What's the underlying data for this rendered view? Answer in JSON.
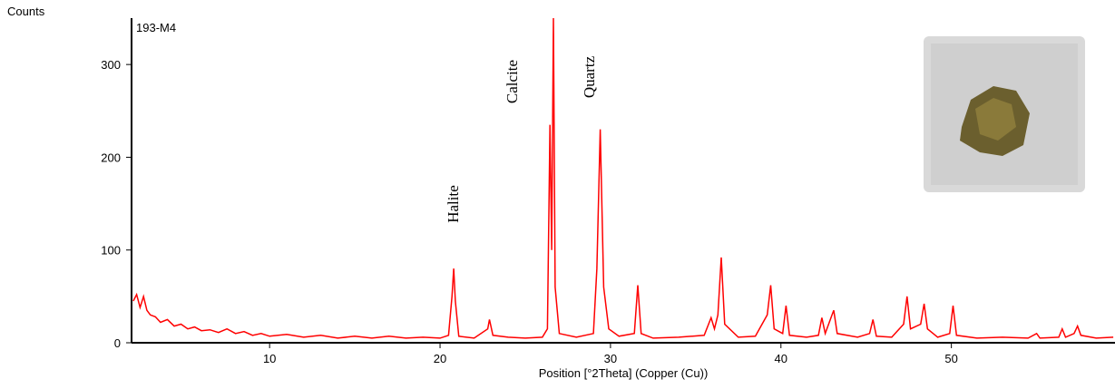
{
  "chart_data": {
    "type": "line",
    "sample_label": "193-M4",
    "y_label": "Counts",
    "x_label": "Position [°2Theta] (Copper (Cu))",
    "annotations": [
      "Halite",
      "Calcite",
      "Quartz"
    ],
    "xlim": [
      1.9,
      59.6
    ],
    "ylim": [
      0,
      350
    ],
    "xticks": [
      10,
      20,
      30,
      40,
      50
    ],
    "yticks": [
      0,
      100,
      200,
      300
    ],
    "series": [
      {
        "color": "#ff0000",
        "x": [
          2,
          2.2,
          2.4,
          2.6,
          2.8,
          3,
          3.3,
          3.6,
          4,
          4.4,
          4.8,
          5.2,
          5.6,
          6,
          6.5,
          7,
          7.5,
          8,
          8.5,
          9,
          9.5,
          10,
          11,
          12,
          13,
          14,
          15,
          16,
          17,
          18,
          19,
          20,
          20.5,
          20.7,
          20.8,
          20.9,
          21.1,
          22,
          22.8,
          22.9,
          23.1,
          24,
          25,
          26,
          26.3,
          26.45,
          26.55,
          26.65,
          26.75,
          27,
          28,
          29,
          29.2,
          29.4,
          29.6,
          29.9,
          30.5,
          31.4,
          31.6,
          31.8,
          32.5,
          34,
          35.5,
          35.9,
          36.1,
          36.3,
          36.5,
          36.7,
          37.5,
          38.5,
          39.2,
          39.4,
          39.6,
          40.1,
          40.3,
          40.5,
          41.5,
          42.2,
          42.4,
          42.6,
          43,
          43.1,
          43.3,
          44.5,
          45.2,
          45.4,
          45.6,
          46.5,
          47.2,
          47.4,
          47.6,
          48.2,
          48.4,
          48.6,
          49.2,
          49.9,
          50.1,
          50.3,
          51.5,
          53,
          54.5,
          55,
          55.2,
          56.3,
          56.5,
          56.7,
          57.2,
          57.4,
          57.6,
          58.5,
          59.5
        ],
        "values": [
          45,
          52,
          38,
          50,
          35,
          30,
          28,
          22,
          25,
          18,
          20,
          15,
          17,
          13,
          14,
          11,
          15,
          10,
          12,
          8,
          10,
          7,
          9,
          6,
          8,
          5,
          7,
          5,
          7,
          5,
          6,
          5,
          8,
          50,
          80,
          45,
          7,
          5,
          15,
          25,
          8,
          6,
          5,
          6,
          15,
          235,
          100,
          350,
          60,
          10,
          6,
          10,
          80,
          230,
          60,
          15,
          7,
          10,
          62,
          10,
          5,
          6,
          8,
          27,
          15,
          30,
          92,
          20,
          6,
          7,
          30,
          62,
          15,
          10,
          40,
          8,
          6,
          8,
          27,
          10,
          30,
          35,
          10,
          6,
          10,
          25,
          7,
          6,
          20,
          50,
          15,
          20,
          42,
          15,
          6,
          10,
          40,
          8,
          5,
          6,
          5,
          10,
          5,
          6,
          15,
          6,
          10,
          18,
          8,
          5,
          6
        ]
      }
    ]
  }
}
